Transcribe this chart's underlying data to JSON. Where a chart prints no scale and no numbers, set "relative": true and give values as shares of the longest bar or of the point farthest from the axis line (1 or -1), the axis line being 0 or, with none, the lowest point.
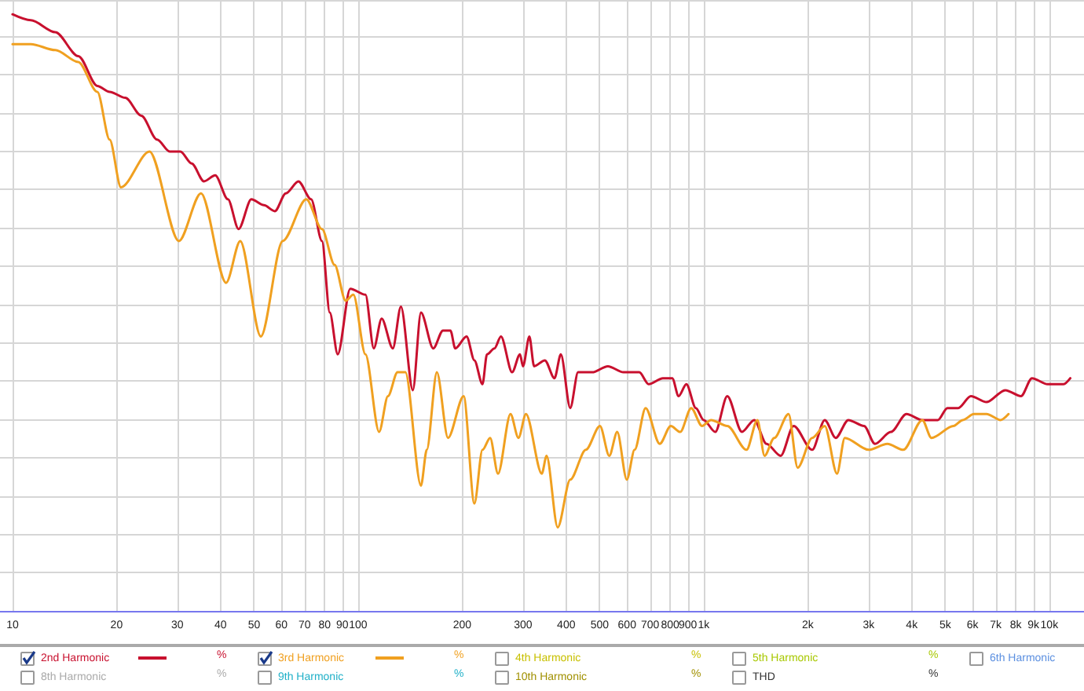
{
  "chart_data": {
    "type": "line",
    "relative": true,
    "log": "x",
    "grid": true,
    "legend": "bottom",
    "marker": "none",
    "line_style": "solid",
    "xlim": [
      9.2,
      12600
    ],
    "xticks": [
      10,
      20,
      30,
      40,
      50,
      60,
      70,
      80,
      90,
      100,
      200,
      300,
      400,
      500,
      600,
      700,
      800,
      900,
      {
        "value": 1000,
        "label": "1k"
      },
      {
        "value": 2000,
        "label": "2k"
      },
      {
        "value": 3000,
        "label": "3k"
      },
      {
        "value": 4000,
        "label": "4k"
      },
      {
        "value": 5000,
        "label": "5k"
      },
      {
        "value": 6000,
        "label": "6k"
      },
      {
        "value": 7000,
        "label": "7k"
      },
      {
        "value": 8000,
        "label": "8k"
      },
      {
        "value": 9000,
        "label": "9k"
      },
      {
        "value": 10000,
        "label": "10k"
      }
    ],
    "annotations": [
      "%",
      "%",
      "4th Harmonic",
      "%",
      "5th Harmonic",
      "%",
      "6th Harmonic",
      "8th Harmonic",
      "%",
      "9th Harmonic",
      "%",
      "10th Harmonic",
      "%",
      "THD",
      "%"
    ],
    "series": [
      {
        "name": "2nd Harmonic",
        "color": "#c8102e",
        "x": [
          10,
          11.3,
          13.3,
          15.5,
          17.6,
          19.1,
          21.2,
          23.6,
          26.2,
          28.5,
          30.6,
          33.0,
          35.8,
          38.6,
          42.0,
          45.1,
          49.1,
          53.4,
          57.4,
          61.8,
          67.2,
          73.1,
          78.6,
          82.8,
          87.3,
          94.9,
          105,
          111,
          117,
          126,
          133,
          144,
          152,
          165,
          176,
          185,
          191,
          206,
          217,
          229,
          236,
          248,
          259,
          279,
          294,
          300,
          313,
          323,
          347,
          370,
          386,
          411,
          433,
          476,
          528,
          586,
          651,
          693,
          762,
          811,
          846,
          891,
          949,
          1000,
          1080,
          1170,
          1290,
          1400,
          1520,
          1670,
          1820,
          2060,
          2240,
          2410,
          2620,
          2910,
          3130,
          3480,
          3860,
          4290,
          4760,
          5070,
          5450,
          5930,
          6580,
          7460,
          8280,
          8910,
          9890,
          11000,
          11500
        ],
        "values": [
          1.0,
          0.99,
          0.97,
          0.93,
          0.88,
          0.87,
          0.86,
          0.83,
          0.79,
          0.77,
          0.77,
          0.75,
          0.72,
          0.73,
          0.69,
          0.64,
          0.69,
          0.68,
          0.67,
          0.7,
          0.72,
          0.69,
          0.62,
          0.5,
          0.43,
          0.54,
          0.53,
          0.44,
          0.49,
          0.44,
          0.51,
          0.37,
          0.5,
          0.44,
          0.47,
          0.47,
          0.44,
          0.46,
          0.42,
          0.38,
          0.43,
          0.44,
          0.46,
          0.4,
          0.43,
          0.41,
          0.46,
          0.41,
          0.42,
          0.39,
          0.43,
          0.34,
          0.4,
          0.4,
          0.41,
          0.4,
          0.4,
          0.38,
          0.39,
          0.39,
          0.36,
          0.38,
          0.34,
          0.32,
          0.3,
          0.36,
          0.3,
          0.32,
          0.28,
          0.26,
          0.31,
          0.27,
          0.32,
          0.29,
          0.32,
          0.31,
          0.28,
          0.3,
          0.33,
          0.32,
          0.32,
          0.34,
          0.34,
          0.36,
          0.35,
          0.37,
          0.36,
          0.39,
          0.38,
          0.38,
          0.39
        ]
      },
      {
        "name": "3rd Harmonic",
        "color": "#f0a020",
        "x": [
          10,
          11.3,
          13.3,
          15.5,
          17.6,
          19.1,
          20.6,
          24.9,
          30.3,
          35.1,
          41.5,
          45.6,
          52.3,
          60.5,
          70.8,
          78.6,
          85.5,
          92.0,
          96.9,
          105,
          115,
          122,
          130,
          137,
          152,
          158,
          169,
          182,
          202,
          217,
          229,
          241,
          254,
          276,
          291,
          306,
          340,
          351,
          378,
          411,
          456,
          501,
          533,
          562,
          599,
          631,
          679,
          746,
          803,
          855,
          920,
          989,
          1050,
          1170,
          1330,
          1430,
          1500,
          1600,
          1760,
          1870,
          2060,
          2240,
          2430,
          2560,
          3000,
          3400,
          3780,
          4290,
          4560,
          5280,
          5620,
          6050,
          6580,
          7230,
          7620
        ],
        "values": [
          0.95,
          0.95,
          0.94,
          0.92,
          0.87,
          0.79,
          0.71,
          0.77,
          0.62,
          0.7,
          0.55,
          0.62,
          0.46,
          0.62,
          0.69,
          0.64,
          0.58,
          0.52,
          0.53,
          0.43,
          0.3,
          0.36,
          0.4,
          0.4,
          0.21,
          0.27,
          0.4,
          0.29,
          0.36,
          0.18,
          0.27,
          0.29,
          0.23,
          0.33,
          0.29,
          0.33,
          0.23,
          0.26,
          0.14,
          0.22,
          0.27,
          0.31,
          0.26,
          0.3,
          0.22,
          0.27,
          0.34,
          0.28,
          0.31,
          0.3,
          0.34,
          0.31,
          0.32,
          0.31,
          0.27,
          0.32,
          0.26,
          0.29,
          0.33,
          0.24,
          0.29,
          0.31,
          0.23,
          0.29,
          0.27,
          0.28,
          0.27,
          0.32,
          0.29,
          0.31,
          0.32,
          0.33,
          0.33,
          0.32,
          0.33
        ]
      }
    ]
  }
}
